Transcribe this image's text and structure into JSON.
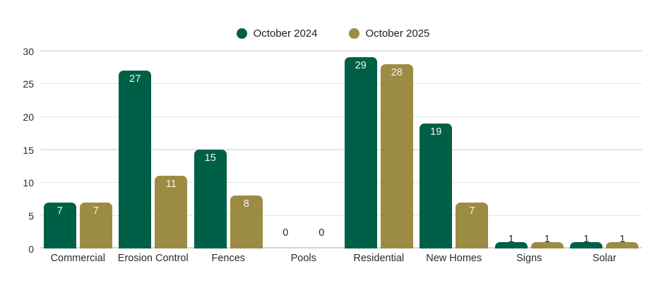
{
  "chart_data": {
    "type": "bar",
    "title": "",
    "xlabel": "",
    "ylabel": "",
    "categories": [
      "Commercial",
      "Erosion Control",
      "Fences",
      "Pools",
      "Residential",
      "New Homes",
      "Signs",
      "Solar"
    ],
    "series": [
      {
        "name": "October 2024",
        "color": "#006047",
        "values": [
          7,
          27,
          15,
          0,
          29,
          19,
          1,
          1
        ]
      },
      {
        "name": "October 2025",
        "color": "#9C8C43",
        "values": [
          7,
          11,
          8,
          0,
          28,
          7,
          1,
          1
        ]
      }
    ],
    "ylim": [
      0,
      30
    ],
    "yticks": [
      0,
      5,
      10,
      15,
      20,
      25,
      30
    ],
    "grid": true,
    "legend_position": "top-center",
    "colors": {
      "background": "#ffffff",
      "gridline": "#e4e4e4",
      "axis_line": "#d6d6d6",
      "tick_text": "#2b2b2b",
      "bar_label_inside": "#f5f2ea",
      "bar_label_outside": "#262626"
    }
  }
}
